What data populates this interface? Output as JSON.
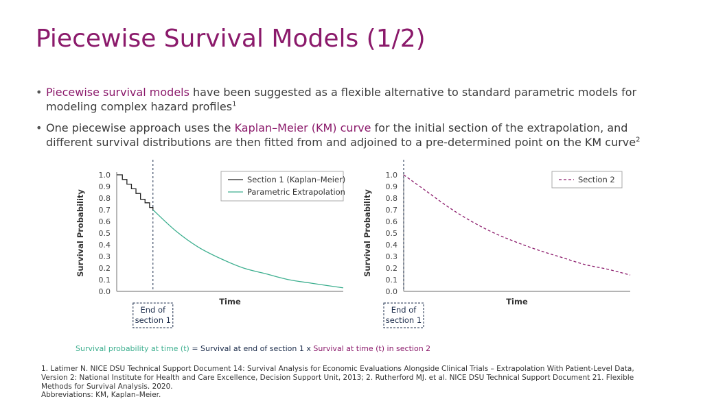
{
  "slide": {
    "title": "Piecewise Survival Models (1/2)",
    "bullets": [
      {
        "highlight": "Piecewise survival models",
        "text": " have been suggested as a flexible alternative to standard parametric models for modeling complex hazard profiles",
        "sup": "1"
      },
      {
        "pre": "One piecewise approach uses the ",
        "highlight": "Kaplan–Meier (KM) curve",
        "text": " for the initial section of the extrapolation, and different survival distributions are then fitted from and adjoined to a pre-determined point on the KM curve",
        "sup": "2"
      }
    ],
    "formula": {
      "part1": "Survival probability at time (t)",
      "eq": " = ",
      "part2": "Survival at end of section 1",
      "times": " x ",
      "part3": "Survival at time (t) in section 2"
    },
    "references": "1. Latimer N. NICE DSU Technical Support Document 14: Survival Analysis for Economic Evaluations Alongside Clinical Trials – Extrapolation With Patient-Level Data, Version 2: National Institute for Health and Care Excellence, Decision Support Unit, 2013; 2. Rutherford MJ. et al. NICE DSU Technical Support Document 21. Flexible Methods for Survival Analysis. 2020.",
    "abbreviations": "Abbreviations: KM, Kaplan–Meier."
  },
  "colors": {
    "title": "#8b1a6b",
    "km": "#222222",
    "parametric": "#3daf8f",
    "section2": "#8b1a6b",
    "marker": "#1a2b4a"
  },
  "chart_data": [
    {
      "type": "line",
      "xlabel": "Time",
      "ylabel": "Survival Probability",
      "ylim": [
        0,
        1
      ],
      "xlim": [
        0,
        10
      ],
      "yticks": [
        "0.0",
        "0.1",
        "0.2",
        "0.3",
        "0.4",
        "0.5",
        "0.6",
        "0.7",
        "0.8",
        "0.9",
        "1.0"
      ],
      "x_ticks_shown": false,
      "legend_position": "top-right",
      "cutoff": {
        "x": 1.6,
        "label_line1": "End of",
        "label_line2": "section 1"
      },
      "series": [
        {
          "name": "Section 1 (Kaplan–Meier)",
          "style": "step",
          "x": [
            0,
            0.25,
            0.45,
            0.65,
            0.85,
            1.05,
            1.25,
            1.45,
            1.6
          ],
          "y": [
            1.0,
            0.96,
            0.92,
            0.88,
            0.84,
            0.79,
            0.76,
            0.72,
            0.7
          ]
        },
        {
          "name": "Parametric Extrapolation",
          "style": "solid",
          "x": [
            1.6,
            2.6,
            3.6,
            4.6,
            5.6,
            6.6,
            7.6,
            8.6,
            10
          ],
          "y": [
            0.7,
            0.52,
            0.38,
            0.28,
            0.2,
            0.15,
            0.1,
            0.07,
            0.03
          ]
        }
      ]
    },
    {
      "type": "line",
      "xlabel": "Time",
      "ylabel": "Survival Probability",
      "ylim": [
        0,
        1
      ],
      "xlim": [
        0,
        10
      ],
      "yticks": [
        "0.0",
        "0.1",
        "0.2",
        "0.3",
        "0.4",
        "0.5",
        "0.6",
        "0.7",
        "0.8",
        "0.9",
        "1.0"
      ],
      "x_ticks_shown": false,
      "legend_position": "top-right",
      "cutoff": {
        "x": 0,
        "label_line1": "End of",
        "label_line2": "section 1"
      },
      "series": [
        {
          "name": "Section 2",
          "style": "dashed",
          "x": [
            0,
            1,
            2,
            3,
            4,
            5,
            6,
            7,
            8,
            9,
            10
          ],
          "y": [
            1.0,
            0.86,
            0.72,
            0.6,
            0.5,
            0.42,
            0.35,
            0.29,
            0.23,
            0.19,
            0.14
          ]
        }
      ]
    }
  ]
}
